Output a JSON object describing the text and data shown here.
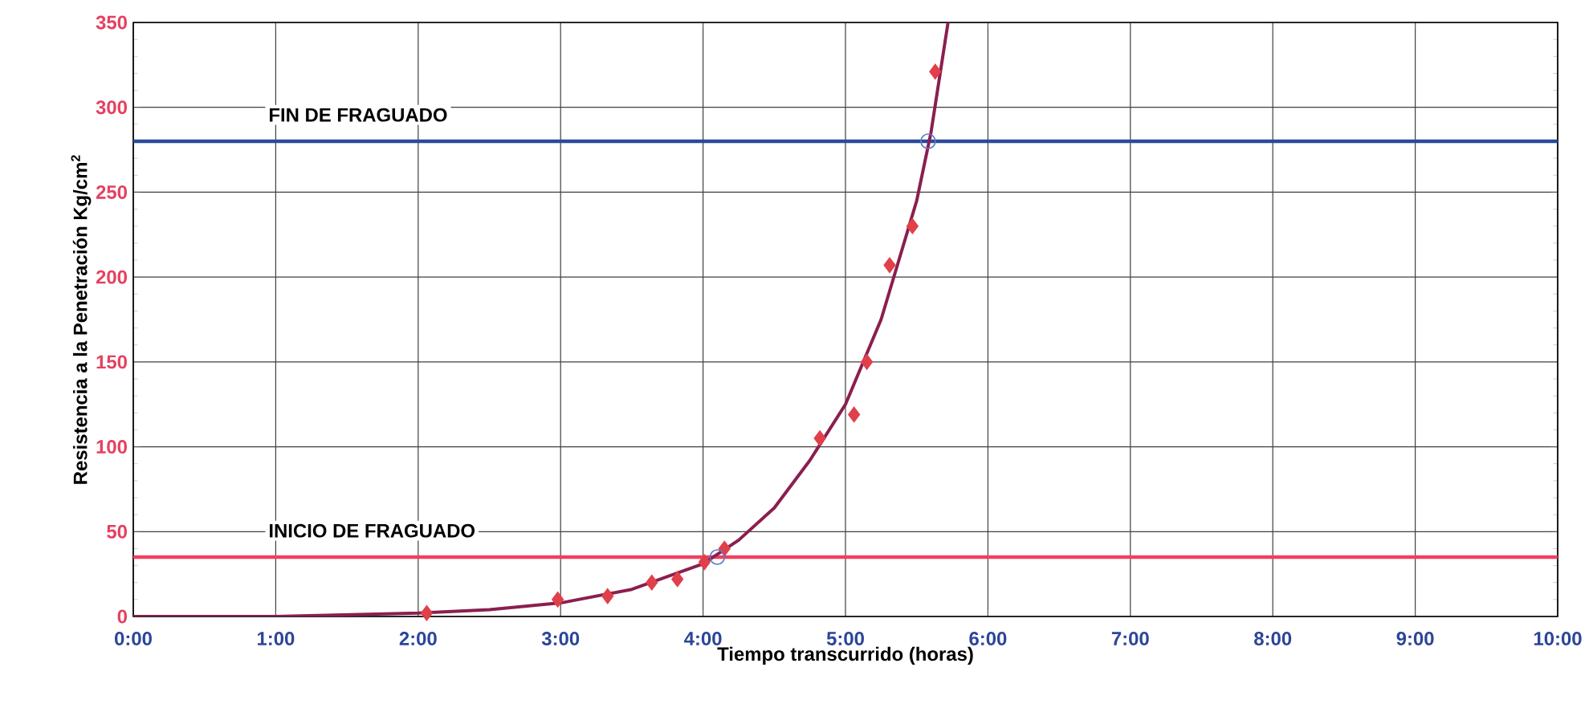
{
  "chart_data": {
    "type": "scatter",
    "xlabel": "Tiempo transcurrido (horas)",
    "ylabel": "Resistencia a la Penetración Kg/cm$^{2}$",
    "xlim": [
      0,
      10
    ],
    "ylim": [
      0,
      350
    ],
    "xticks": [
      {
        "value": 0,
        "label": "0:00"
      },
      {
        "value": 1,
        "label": "1:00"
      },
      {
        "value": 2,
        "label": "2:00"
      },
      {
        "value": 3,
        "label": "3:00"
      },
      {
        "value": 4,
        "label": "4:00"
      },
      {
        "value": 5,
        "label": "5:00"
      },
      {
        "value": 6,
        "label": "6:00"
      },
      {
        "value": 7,
        "label": "7:00"
      },
      {
        "value": 8,
        "label": "8:00"
      },
      {
        "value": 9,
        "label": "9:00"
      },
      {
        "value": 10,
        "label": "10:00"
      }
    ],
    "yticks": [
      0,
      50,
      100,
      150,
      200,
      250,
      300,
      350
    ],
    "grid": true,
    "series": [
      {
        "type": "line",
        "color": "#8b1f4f",
        "marker": "none",
        "x": [
          0,
          1,
          2,
          2.5,
          3,
          3.5,
          4,
          4.25,
          4.5,
          4.75,
          5,
          5.25,
          5.5,
          5.6,
          5.72
        ],
        "values": [
          0,
          0,
          2,
          4,
          8,
          16,
          31,
          45,
          64,
          92,
          125,
          175,
          245,
          285,
          350
        ]
      },
      {
        "color": "#e0404a",
        "marker": "diamond",
        "x": [
          2.06,
          2.98,
          3.33,
          3.64,
          3.82,
          4.01,
          4.15,
          4.82,
          5.06,
          5.15,
          5.31,
          5.47,
          5.63
        ],
        "values": [
          2,
          10,
          12,
          20,
          22,
          32,
          40,
          105,
          119,
          150,
          207,
          230,
          321
        ]
      },
      {
        "type": "scatter",
        "color": "#5a7ac8",
        "marker": "circle",
        "x": [
          4.1,
          5.58
        ],
        "values": [
          35,
          280
        ]
      }
    ],
    "ref_lines": [
      {
        "axis": "y",
        "value": 280,
        "label": "FIN DE FRAGUADO",
        "color": "#2a4a9a"
      },
      {
        "axis": "y",
        "value": 35,
        "label": "INICIO DE FRAGUADO",
        "color": "#f04060"
      }
    ]
  }
}
